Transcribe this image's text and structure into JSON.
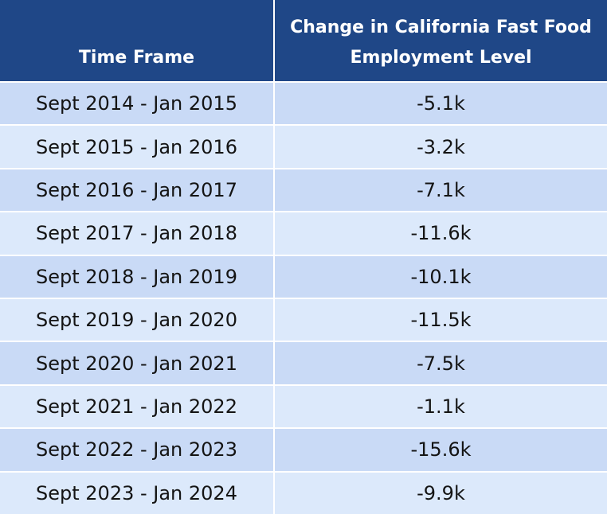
{
  "table": {
    "header": [
      "Time Frame",
      "Change in California Fast Food Employment Level"
    ],
    "rows": [
      [
        "Sept 2014 - Jan 2015",
        "-5.1k"
      ],
      [
        "Sept 2015 - Jan 2016",
        "-3.2k"
      ],
      [
        "Sept 2016 - Jan 2017",
        "-7.1k"
      ],
      [
        "Sept 2017 - Jan 2018",
        "-11.6k"
      ],
      [
        "Sept 2018 - Jan 2019",
        "-10.1k"
      ],
      [
        "Sept 2019 - Jan 2020",
        "-11.5k"
      ],
      [
        "Sept 2020 - Jan 2021",
        "-7.5k"
      ],
      [
        "Sept 2021 - Jan 2022",
        "-1.1k"
      ],
      [
        "Sept 2022 - Jan 2023",
        "-15.6k"
      ],
      [
        "Sept 2023 - Jan 2024",
        "-9.9k"
      ]
    ]
  }
}
